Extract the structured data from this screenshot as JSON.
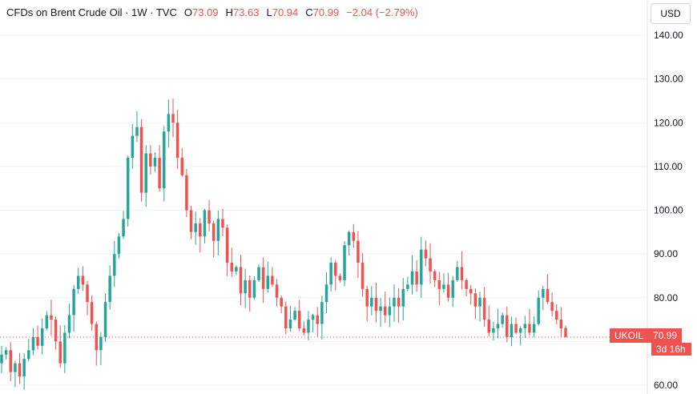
{
  "legend": {
    "title": "CFDs on Brent Crude Oil · 1W · TVC",
    "open_label": "O",
    "open": "73.09",
    "high_label": "H",
    "high": "73.63",
    "low_label": "L",
    "low": "70.94",
    "close_label": "C",
    "close": "70.99",
    "change": "−2.04 (−2.79%)"
  },
  "currency": "USD",
  "price_tag": {
    "symbol": "UKOIL",
    "price": "70.99",
    "countdown": "3d 16h"
  },
  "colors": {
    "up": "#26a69a",
    "down": "#ef5350",
    "grid": "#f0f3fa",
    "axis": "#e0e3eb"
  },
  "chart_data": {
    "type": "candlestick",
    "title": "CFDs on Brent Crude Oil",
    "interval": "1W",
    "ylim": [
      58,
      145
    ],
    "y_ticks": [
      "60.00",
      "70.00",
      "80.00",
      "90.00",
      "100.00",
      "110.00",
      "120.00",
      "130.00",
      "140.00"
    ],
    "last_price": 70.99,
    "grid": true,
    "series": [
      {
        "name": "close",
        "values": [
          67,
          68,
          63,
          65,
          62,
          66,
          68,
          71,
          69,
          73,
          76,
          75,
          70,
          65,
          72,
          76,
          82,
          85,
          83,
          79,
          74,
          68,
          71,
          79,
          85,
          90,
          94,
          98,
          112,
          117,
          119,
          104,
          113,
          110,
          112,
          105,
          118,
          122,
          120,
          112,
          108,
          100,
          95,
          97,
          94,
          100,
          97,
          93,
          98,
          96,
          88,
          86,
          87,
          81,
          84,
          80,
          84,
          87,
          82,
          85,
          83,
          80,
          78,
          73,
          75,
          77,
          73,
          72,
          75,
          76,
          74,
          79,
          83,
          88,
          85,
          84,
          92,
          95,
          93,
          88,
          82,
          78,
          80,
          77,
          78,
          76,
          78,
          80,
          78,
          82,
          83,
          86,
          83,
          91,
          89,
          86,
          84,
          82,
          83,
          80,
          84,
          87,
          84,
          82,
          81,
          78,
          80,
          75,
          72,
          73,
          74,
          76,
          71,
          74,
          72,
          73,
          74,
          72,
          74,
          80,
          82,
          79,
          77,
          75,
          73,
          70.99
        ]
      }
    ]
  }
}
